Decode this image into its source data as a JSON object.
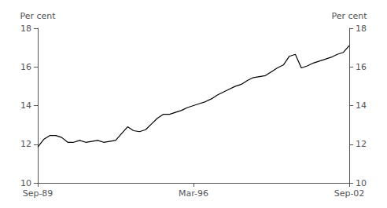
{
  "chart_data": {
    "type": "line",
    "ylabel": "Per cent",
    "y2label": "Per cent",
    "categories": [
      "Sep-89",
      null,
      null,
      null,
      null,
      null,
      null,
      null,
      null,
      null,
      null,
      null,
      null,
      null,
      null,
      null,
      null,
      null,
      null,
      null,
      null,
      null,
      null,
      null,
      null,
      null,
      "Mar-96",
      null,
      null,
      null,
      null,
      null,
      null,
      null,
      null,
      null,
      null,
      null,
      null,
      null,
      null,
      null,
      null,
      null,
      null,
      null,
      null,
      null,
      null,
      null,
      null,
      null,
      "Sep-02"
    ],
    "values": [
      11.85,
      12.25,
      12.45,
      12.45,
      12.35,
      12.1,
      12.1,
      12.2,
      12.1,
      12.15,
      12.2,
      12.1,
      12.15,
      12.2,
      12.55,
      12.9,
      12.7,
      12.65,
      12.75,
      13.05,
      13.35,
      13.55,
      13.55,
      13.65,
      13.75,
      13.9,
      14.0,
      14.1,
      14.2,
      14.35,
      14.55,
      14.7,
      14.85,
      15.0,
      15.1,
      15.3,
      15.45,
      15.5,
      15.55,
      15.75,
      15.95,
      16.1,
      16.55,
      16.65,
      15.95,
      16.05,
      16.2,
      16.3,
      16.4,
      16.5,
      16.65,
      16.75,
      17.1
    ],
    "color": "#000000",
    "ylim": [
      10,
      18
    ],
    "yticks": [
      10,
      12,
      14,
      16,
      18
    ],
    "y2lim": [
      10,
      18
    ],
    "y2ticks": [
      10,
      12,
      14,
      16,
      18
    ],
    "grid": false
  }
}
